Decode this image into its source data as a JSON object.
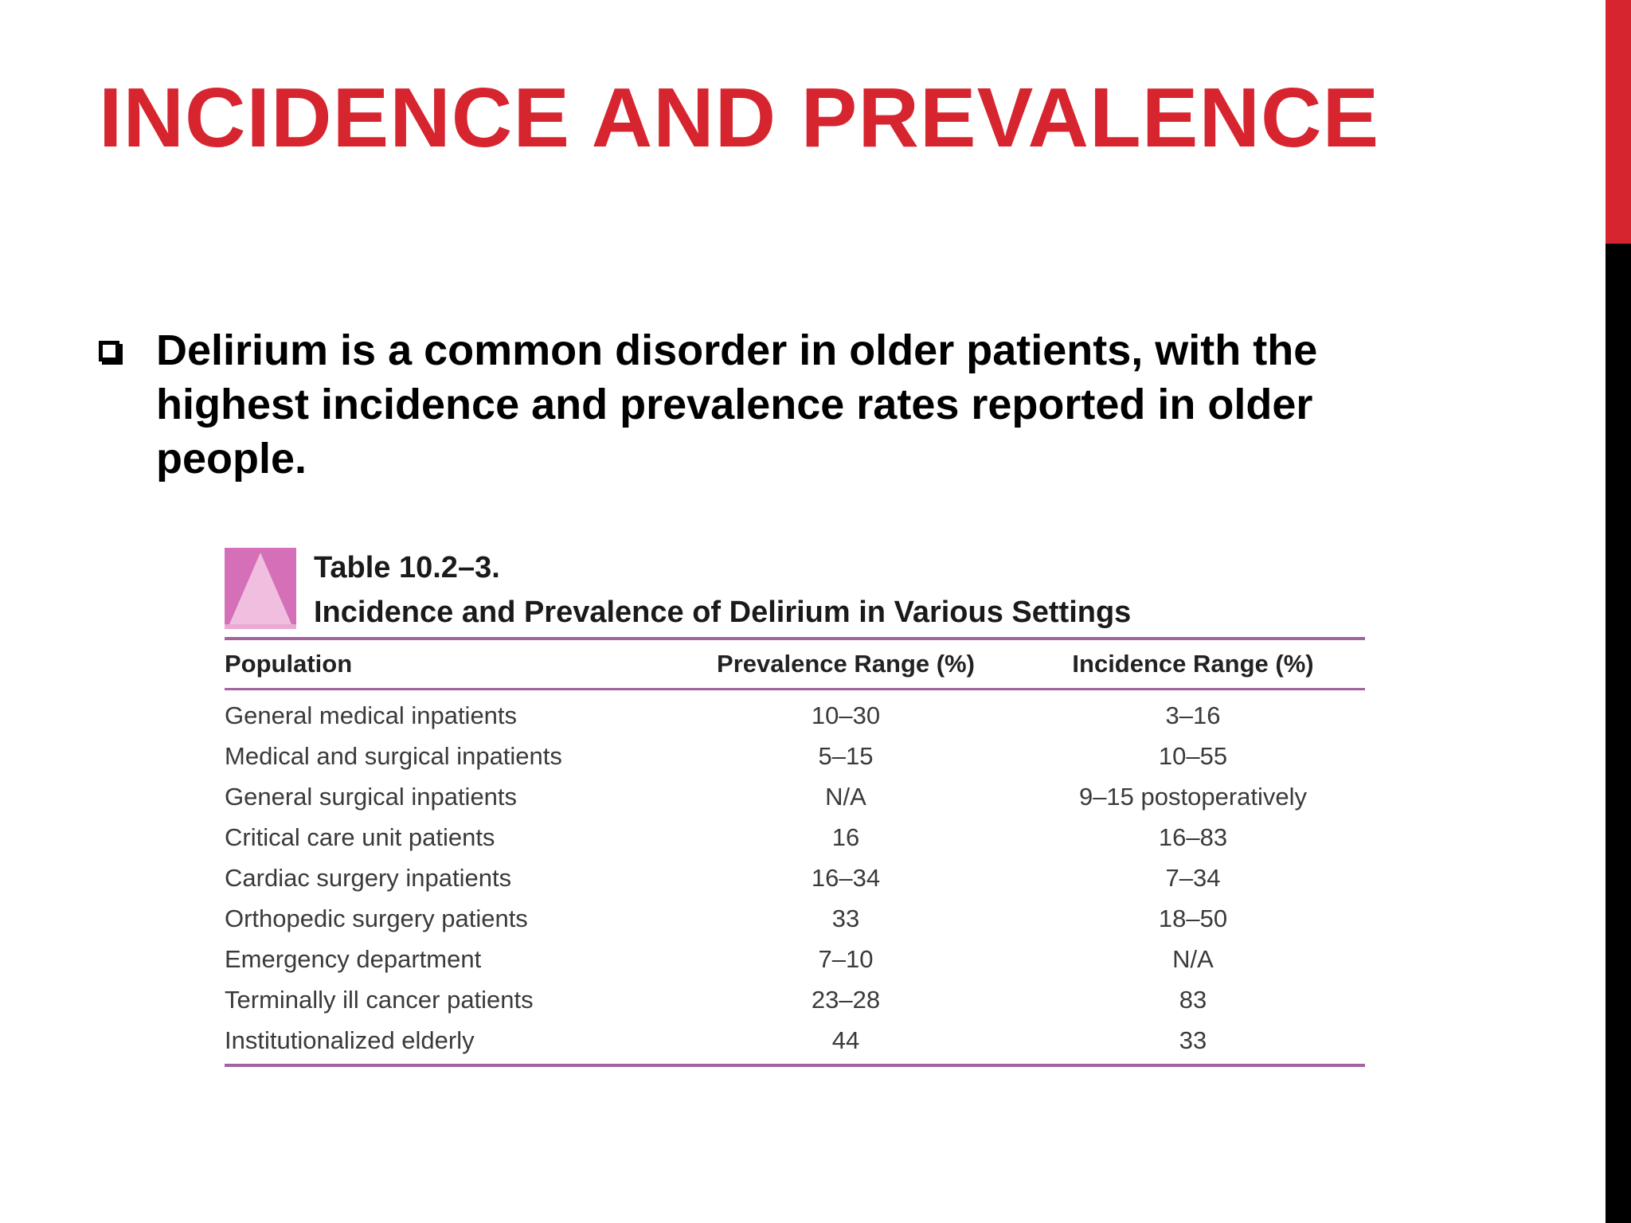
{
  "slide": {
    "title": "INCIDENCE AND PREVALENCE",
    "bullet_text": "Delirium is a common disorder in older patients, with the highest incidence and prevalence rates reported in older people."
  },
  "table": {
    "label": "Table 10.2–3.",
    "caption": "Incidence and Prevalence of Delirium in Various Settings",
    "columns": [
      "Population",
      "Prevalence Range (%)",
      "Incidence Range (%)"
    ],
    "rows": [
      [
        "General medical inpatients",
        "10–30",
        "3–16"
      ],
      [
        "Medical and surgical inpatients",
        "5–15",
        "10–55"
      ],
      [
        "General surgical inpatients",
        "N/A",
        "9–15 postoperatively"
      ],
      [
        "Critical care unit patients",
        "16",
        "16–83"
      ],
      [
        "Cardiac surgery inpatients",
        "16–34",
        "7–34"
      ],
      [
        "Orthopedic surgery patients",
        "33",
        "18–50"
      ],
      [
        "Emergency department",
        "7–10",
        "N/A"
      ],
      [
        "Terminally ill cancer patients",
        "23–28",
        "83"
      ],
      [
        "Institutionalized elderly",
        "44",
        "33"
      ]
    ]
  },
  "colors": {
    "accent_red": "#d7252f",
    "rule_purple": "#a3639f",
    "icon_pink": "#d56fb7"
  }
}
